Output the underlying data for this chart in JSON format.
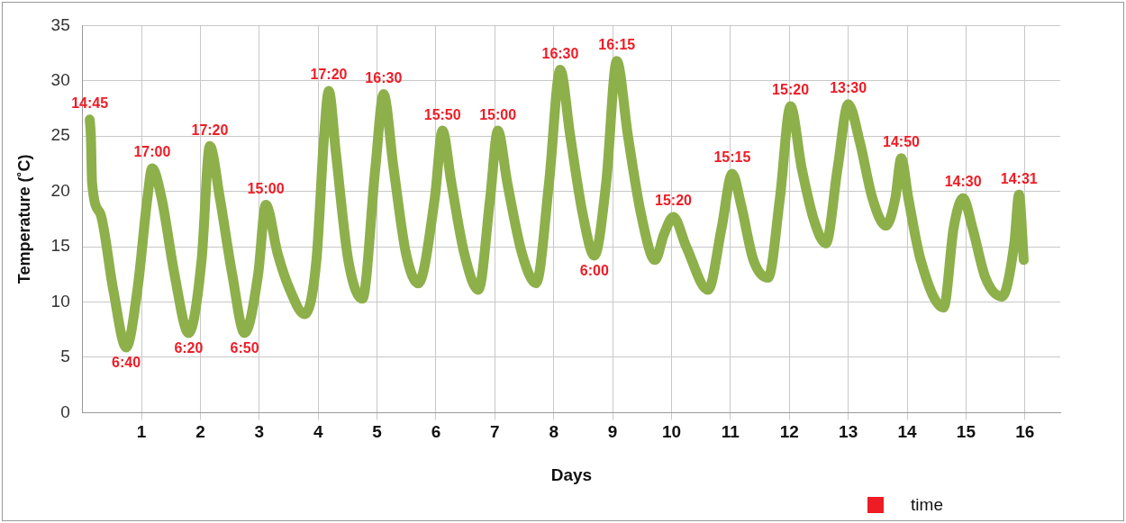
{
  "chart_data": {
    "type": "line",
    "xlabel": "Days",
    "ylabel": "Temperature (˚C)",
    "xlim": [
      0,
      16.6
    ],
    "xticks": [
      1,
      2,
      3,
      4,
      5,
      6,
      7,
      8,
      9,
      10,
      11,
      12,
      13,
      14,
      15,
      16
    ],
    "ylim": [
      0,
      35
    ],
    "yticks": [
      0,
      5,
      10,
      15,
      20,
      25,
      30,
      35
    ],
    "grid": true,
    "series": [
      {
        "color": "#8db04b",
        "x": [
          0.12,
          0.14,
          0.16,
          0.3,
          0.52,
          0.74,
          0.93,
          1.1,
          1.18,
          1.34,
          1.56,
          1.8,
          2.02,
          2.16,
          2.33,
          2.54,
          2.75,
          2.98,
          3.11,
          3.31,
          3.52,
          3.77,
          3.97,
          4.1,
          4.18,
          4.3,
          4.51,
          4.75,
          4.97,
          5.11,
          5.28,
          5.49,
          5.7,
          5.98,
          6.11,
          6.26,
          6.48,
          6.72,
          6.92,
          7.05,
          7.21,
          7.46,
          7.7,
          7.92,
          8.11,
          8.28,
          8.49,
          8.69,
          8.89,
          9.07,
          9.26,
          9.48,
          9.72,
          9.87,
          10.03,
          10.25,
          10.62,
          10.85,
          11.03,
          11.18,
          11.39,
          11.64,
          11.84,
          12.02,
          12.21,
          12.43,
          12.62,
          12.82,
          13.0,
          13.2,
          13.41,
          13.64,
          13.8,
          13.9,
          14.02,
          14.23,
          14.62,
          14.79,
          14.95,
          15.11,
          15.33,
          15.61,
          15.82,
          15.9,
          15.98
        ],
        "values": [
          26.5,
          25,
          20.8,
          18,
          11.1,
          5.9,
          11.1,
          19.4,
          22.1,
          19.4,
          12.5,
          7.2,
          13.8,
          24.1,
          19.4,
          12.5,
          7.2,
          12.5,
          18.8,
          14.4,
          11.1,
          8.9,
          13.8,
          25,
          29.1,
          23.5,
          13.8,
          10.3,
          22.1,
          28.8,
          22.1,
          14.4,
          11.7,
          19.4,
          25.5,
          20.8,
          14.4,
          11.1,
          19.4,
          25.5,
          20.8,
          14.4,
          11.7,
          20.8,
          31,
          25,
          18,
          14.2,
          20.8,
          31.8,
          25,
          18,
          13.8,
          16.1,
          17.7,
          15,
          11.1,
          16.7,
          21.6,
          18.8,
          13.8,
          12.2,
          19.4,
          27.7,
          22.1,
          17.2,
          15.3,
          22.1,
          27.9,
          24.4,
          19.4,
          16.9,
          19.4,
          23,
          19.4,
          13.8,
          9.5,
          16.7,
          19.4,
          16.7,
          12.2,
          10.5,
          15.3,
          19.7,
          13.8
        ]
      }
    ],
    "annotations": [
      {
        "text": "14:45",
        "x": 0.12,
        "y": 26.5
      },
      {
        "text": "6:40",
        "x": 0.74,
        "y": 5.9
      },
      {
        "text": "17:00",
        "x": 1.18,
        "y": 22.1
      },
      {
        "text": "6:20",
        "x": 1.8,
        "y": 7.2
      },
      {
        "text": "17:20",
        "x": 2.16,
        "y": 24.1
      },
      {
        "text": "6:50",
        "x": 2.75,
        "y": 7.2
      },
      {
        "text": "15:00",
        "x": 3.11,
        "y": 18.8
      },
      {
        "text": "17:20",
        "x": 4.18,
        "y": 29.1
      },
      {
        "text": "16:30",
        "x": 5.11,
        "y": 28.8
      },
      {
        "text": "15:50",
        "x": 6.11,
        "y": 25.5
      },
      {
        "text": "15:00",
        "x": 7.05,
        "y": 25.5
      },
      {
        "text": "16:30",
        "x": 8.11,
        "y": 31
      },
      {
        "text": "6:00",
        "x": 8.69,
        "y": 14.2
      },
      {
        "text": "16:15",
        "x": 9.07,
        "y": 31.8
      },
      {
        "text": "15:20",
        "x": 10.03,
        "y": 17.7
      },
      {
        "text": "15:15",
        "x": 11.03,
        "y": 21.6
      },
      {
        "text": "15:20",
        "x": 12.02,
        "y": 27.7
      },
      {
        "text": "13:30",
        "x": 13.0,
        "y": 27.9
      },
      {
        "text": "14:50",
        "x": 13.9,
        "y": 23
      },
      {
        "text": "14:30",
        "x": 14.95,
        "y": 19.4
      },
      {
        "text": "14:31",
        "x": 15.9,
        "y": 19.7
      },
      "time"
    ]
  }
}
